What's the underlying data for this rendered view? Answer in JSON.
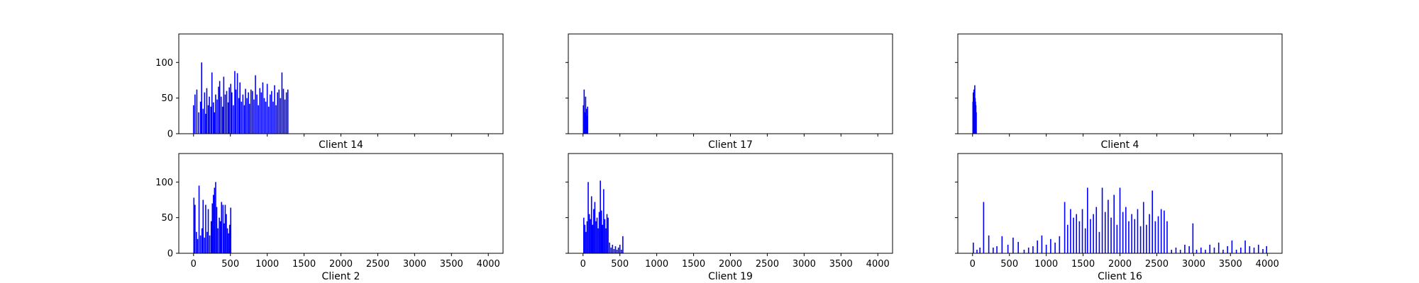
{
  "chart_data": [
    {
      "type": "bar",
      "title": "Client 14",
      "xlim": [
        -200,
        4200
      ],
      "ylim": [
        0,
        140
      ],
      "xticks": [
        0,
        500,
        1000,
        1500,
        2000,
        2500,
        3000,
        3500,
        4000
      ],
      "yticks": [
        0,
        50,
        100
      ],
      "show_xtick_labels": false,
      "show_ytick_labels": true,
      "bar_color": "#0000ff",
      "grid": false,
      "x": [
        0,
        20,
        45,
        70,
        95,
        110,
        130,
        150,
        165,
        180,
        200,
        215,
        235,
        250,
        270,
        285,
        300,
        320,
        340,
        355,
        375,
        395,
        410,
        430,
        450,
        470,
        485,
        505,
        520,
        540,
        560,
        575,
        595,
        615,
        630,
        650,
        670,
        690,
        705,
        725,
        745,
        760,
        780,
        800,
        820,
        840,
        860,
        880,
        900,
        920,
        940,
        960,
        980,
        1000,
        1020,
        1040,
        1060,
        1080,
        1100,
        1120,
        1140,
        1160,
        1180,
        1200,
        1220,
        1240,
        1260,
        1280
      ],
      "values": [
        40,
        55,
        62,
        30,
        45,
        100,
        35,
        58,
        28,
        64,
        40,
        52,
        38,
        86,
        44,
        30,
        55,
        48,
        66,
        74,
        52,
        38,
        80,
        55,
        60,
        44,
        65,
        70,
        58,
        40,
        88,
        62,
        85,
        50,
        72,
        45,
        55,
        40,
        63,
        50,
        58,
        42,
        62,
        60,
        48,
        82,
        55,
        40,
        64,
        58,
        72,
        50,
        45,
        70,
        38,
        55,
        60,
        45,
        68,
        40,
        58,
        62,
        50,
        86,
        63,
        48,
        58,
        62
      ]
    },
    {
      "type": "bar",
      "title": "Client 17",
      "xlim": [
        -200,
        4200
      ],
      "ylim": [
        0,
        140
      ],
      "xticks": [
        0,
        500,
        1000,
        1500,
        2000,
        2500,
        3000,
        3500,
        4000
      ],
      "yticks": [
        0,
        50,
        100
      ],
      "show_xtick_labels": false,
      "show_ytick_labels": false,
      "bar_color": "#0000ff",
      "grid": false,
      "x": [
        5,
        15,
        25,
        35,
        45,
        55,
        62
      ],
      "values": [
        40,
        62,
        30,
        52,
        35,
        25,
        38
      ]
    },
    {
      "type": "bar",
      "title": "Client 4",
      "xlim": [
        -200,
        4200
      ],
      "ylim": [
        0,
        140
      ],
      "xticks": [
        0,
        500,
        1000,
        1500,
        2000,
        2500,
        3000,
        3500,
        4000
      ],
      "yticks": [
        0,
        50,
        100
      ],
      "show_xtick_labels": false,
      "show_ytick_labels": false,
      "bar_color": "#0000ff",
      "grid": false,
      "x": [
        5,
        10,
        15,
        20,
        25,
        30,
        35,
        40,
        45,
        50
      ],
      "values": [
        45,
        58,
        48,
        62,
        55,
        68,
        50,
        45,
        40,
        30
      ]
    },
    {
      "type": "bar",
      "title": "Client 2",
      "xlim": [
        -200,
        4200
      ],
      "ylim": [
        0,
        140
      ],
      "xticks": [
        0,
        500,
        1000,
        1500,
        2000,
        2500,
        3000,
        3500,
        4000
      ],
      "yticks": [
        0,
        50,
        100
      ],
      "show_xtick_labels": true,
      "show_ytick_labels": true,
      "bar_color": "#0000ff",
      "grid": false,
      "x": [
        5,
        20,
        40,
        55,
        75,
        95,
        115,
        130,
        150,
        165,
        185,
        200,
        220,
        240,
        255,
        270,
        285,
        300,
        315,
        330,
        350,
        365,
        380,
        400,
        415,
        430,
        445,
        460,
        475,
        490,
        505
      ],
      "values": [
        78,
        68,
        30,
        20,
        95,
        25,
        35,
        75,
        22,
        68,
        30,
        62,
        25,
        45,
        70,
        82,
        92,
        100,
        65,
        35,
        50,
        45,
        72,
        68,
        42,
        68,
        55,
        35,
        28,
        40,
        64
      ]
    },
    {
      "type": "bar",
      "title": "Client 19",
      "xlim": [
        -200,
        4200
      ],
      "ylim": [
        0,
        140
      ],
      "xticks": [
        0,
        500,
        1000,
        1500,
        2000,
        2500,
        3000,
        3500,
        4000
      ],
      "yticks": [
        0,
        50,
        100
      ],
      "show_xtick_labels": true,
      "show_ytick_labels": false,
      "bar_color": "#0000ff",
      "grid": false,
      "x": [
        10,
        25,
        40,
        55,
        70,
        85,
        100,
        115,
        130,
        145,
        160,
        175,
        190,
        205,
        220,
        235,
        250,
        265,
        280,
        295,
        310,
        325,
        340,
        360,
        380,
        400,
        420,
        440,
        460,
        480,
        500,
        520,
        540
      ],
      "values": [
        50,
        40,
        30,
        45,
        100,
        55,
        48,
        80,
        40,
        62,
        72,
        45,
        50,
        35,
        58,
        102,
        60,
        40,
        90,
        48,
        35,
        55,
        50,
        15,
        8,
        12,
        6,
        10,
        5,
        8,
        12,
        5,
        24
      ]
    },
    {
      "type": "bar",
      "title": "Client 16",
      "xlim": [
        -200,
        4200
      ],
      "ylim": [
        0,
        140
      ],
      "xticks": [
        0,
        500,
        1000,
        1500,
        2000,
        2500,
        3000,
        3500,
        4000
      ],
      "yticks": [
        0,
        50,
        100
      ],
      "show_xtick_labels": true,
      "show_ytick_labels": false,
      "bar_color": "#0000ff",
      "grid": false,
      "x": [
        10,
        60,
        100,
        150,
        220,
        280,
        330,
        400,
        480,
        550,
        620,
        700,
        760,
        820,
        880,
        940,
        1000,
        1060,
        1120,
        1180,
        1250,
        1290,
        1330,
        1370,
        1410,
        1450,
        1490,
        1530,
        1560,
        1600,
        1640,
        1680,
        1720,
        1760,
        1800,
        1840,
        1880,
        1920,
        1960,
        2000,
        2040,
        2080,
        2120,
        2160,
        2200,
        2240,
        2280,
        2320,
        2360,
        2400,
        2440,
        2480,
        2520,
        2560,
        2600,
        2640,
        2700,
        2760,
        2820,
        2880,
        2940,
        2990,
        3040,
        3100,
        3160,
        3220,
        3280,
        3340,
        3400,
        3460,
        3520,
        3580,
        3640,
        3700,
        3760,
        3820,
        3880,
        3940,
        3990
      ],
      "values": [
        15,
        5,
        8,
        72,
        25,
        8,
        10,
        24,
        12,
        22,
        16,
        5,
        8,
        10,
        18,
        25,
        12,
        20,
        15,
        24,
        72,
        40,
        62,
        50,
        55,
        45,
        62,
        35,
        92,
        48,
        55,
        65,
        30,
        92,
        58,
        75,
        50,
        82,
        40,
        92,
        58,
        65,
        45,
        55,
        48,
        62,
        38,
        72,
        40,
        55,
        88,
        45,
        52,
        62,
        60,
        45,
        5,
        8,
        5,
        12,
        10,
        42,
        5,
        8,
        5,
        12,
        8,
        15,
        5,
        10,
        18,
        5,
        8,
        18,
        10,
        8,
        12,
        6,
        10
      ]
    }
  ]
}
